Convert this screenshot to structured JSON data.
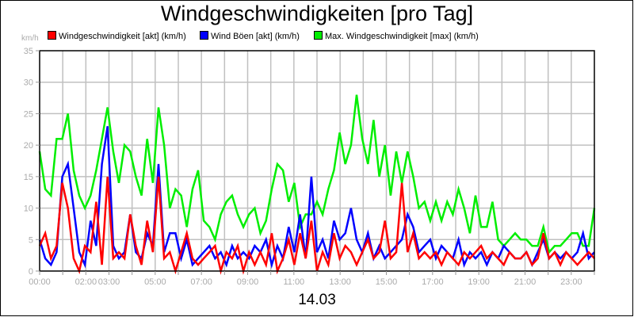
{
  "chart_data": {
    "type": "line",
    "title": "Windgeschwindigkeiten [pro Tag]",
    "xlabel": "14.03",
    "ylabel": "km/h",
    "ylim": [
      0,
      35
    ],
    "yticks": [
      0,
      5,
      10,
      15,
      20,
      25,
      30,
      35
    ],
    "xticks": [
      "00:00",
      "02:00",
      "03:00",
      "05:00",
      "07:00",
      "09:00",
      "11:00",
      "13:00",
      "15:00",
      "17:00",
      "19:00",
      "21:00",
      "23:00"
    ],
    "grid": true,
    "legend_position": "top",
    "x_hours": [
      0,
      0.25,
      0.5,
      0.75,
      1,
      1.25,
      1.5,
      1.75,
      2,
      2.25,
      2.5,
      2.75,
      3,
      3.25,
      3.5,
      3.75,
      4,
      4.25,
      4.5,
      4.75,
      5,
      5.25,
      5.5,
      5.75,
      6,
      6.25,
      6.5,
      6.75,
      7,
      7.25,
      7.5,
      7.75,
      8,
      8.25,
      8.5,
      8.75,
      9,
      9.25,
      9.5,
      9.75,
      10,
      10.25,
      10.5,
      10.75,
      11,
      11.25,
      11.5,
      11.75,
      12,
      12.25,
      12.5,
      12.75,
      13,
      13.25,
      13.5,
      13.75,
      14,
      14.25,
      14.5,
      14.75,
      15,
      15.25,
      15.5,
      15.75,
      16,
      16.25,
      16.5,
      16.75,
      17,
      17.25,
      17.5,
      17.75,
      18,
      18.25,
      18.5,
      18.75,
      19,
      19.25,
      19.5,
      19.75,
      20,
      20.25,
      20.5,
      20.75,
      21,
      21.25,
      21.5,
      21.75,
      22,
      22.25,
      22.5,
      22.75,
      23,
      23.25,
      23.5,
      23.75,
      24
    ],
    "series": [
      {
        "name": "Windgeschwindigkeit [akt] (km/h)",
        "color": "#ff0000",
        "values": [
          4,
          6,
          2,
          4,
          14,
          10,
          2,
          0,
          4,
          3,
          11,
          1,
          15,
          2,
          3,
          2,
          9,
          4,
          1,
          8,
          3,
          15,
          2,
          3,
          0,
          3,
          6,
          2,
          1,
          2,
          3,
          4,
          0,
          3,
          2,
          4,
          0,
          3,
          1,
          3,
          1,
          6,
          0,
          2,
          5,
          1,
          6,
          2,
          8,
          0,
          3,
          1,
          6,
          2,
          4,
          3,
          1,
          3,
          5,
          2,
          3,
          8,
          2,
          3,
          14,
          3,
          6,
          2,
          3,
          2,
          3,
          1,
          3,
          2,
          1,
          3,
          2,
          3,
          4,
          2,
          3,
          2,
          1,
          3,
          2,
          2,
          3,
          1,
          2,
          6,
          2,
          3,
          1,
          3,
          2,
          1,
          2,
          3,
          2
        ]
      },
      {
        "name": "Wind Böen [akt] (km/h)",
        "color": "#0000ff",
        "values": [
          5,
          2,
          1,
          3,
          15,
          17,
          10,
          3,
          1,
          8,
          4,
          17,
          23,
          4,
          2,
          3,
          9,
          3,
          2,
          6,
          4,
          17,
          3,
          6,
          6,
          2,
          5,
          1,
          2,
          3,
          4,
          2,
          3,
          1,
          4,
          2,
          3,
          2,
          4,
          3,
          5,
          1,
          4,
          2,
          7,
          3,
          9,
          2,
          15,
          3,
          5,
          2,
          8,
          5,
          6,
          10,
          5,
          3,
          6,
          2,
          4,
          2,
          3,
          4,
          5,
          9,
          7,
          3,
          4,
          5,
          2,
          4,
          3,
          2,
          5,
          1,
          3,
          2,
          3,
          1,
          3,
          2,
          4,
          3,
          2,
          2,
          3,
          1,
          3,
          5,
          2,
          3,
          2,
          3,
          2,
          3,
          6,
          2,
          3
        ]
      },
      {
        "name": "Max. Windgeschwindigkeit [max] (km/h)",
        "color": "#00ee00",
        "values": [
          19,
          13,
          12,
          21,
          21,
          25,
          16,
          12,
          10,
          12,
          16,
          21,
          26,
          19,
          14,
          20,
          19,
          15,
          12,
          21,
          14,
          26,
          20,
          10,
          13,
          12,
          7,
          13,
          16,
          8,
          7,
          5,
          9,
          11,
          12,
          9,
          7,
          9,
          10,
          6,
          8,
          13,
          17,
          16,
          11,
          14,
          7,
          9,
          9,
          11,
          9,
          13,
          16,
          22,
          17,
          20,
          28,
          21,
          17,
          24,
          15,
          20,
          12,
          19,
          14,
          19,
          15,
          10,
          11,
          8,
          11,
          8,
          11,
          9,
          13,
          10,
          6,
          12,
          7,
          7,
          11,
          5,
          4,
          5,
          6,
          5,
          5,
          4,
          4,
          7,
          3,
          4,
          4,
          5,
          6,
          6,
          4,
          4,
          10
        ]
      }
    ]
  },
  "title": "Windgeschwindigkeiten [pro Tag]",
  "unit_label": "km/h",
  "date_label": "14.03",
  "legend": [
    {
      "label": "Windgeschwindigkeit [akt] (km/h)",
      "color": "#ff0000"
    },
    {
      "label": "Wind Böen [akt] (km/h)",
      "color": "#0000ff"
    },
    {
      "label": "Max. Windgeschwindigkeit [max] (km/h)",
      "color": "#00ee00"
    }
  ]
}
